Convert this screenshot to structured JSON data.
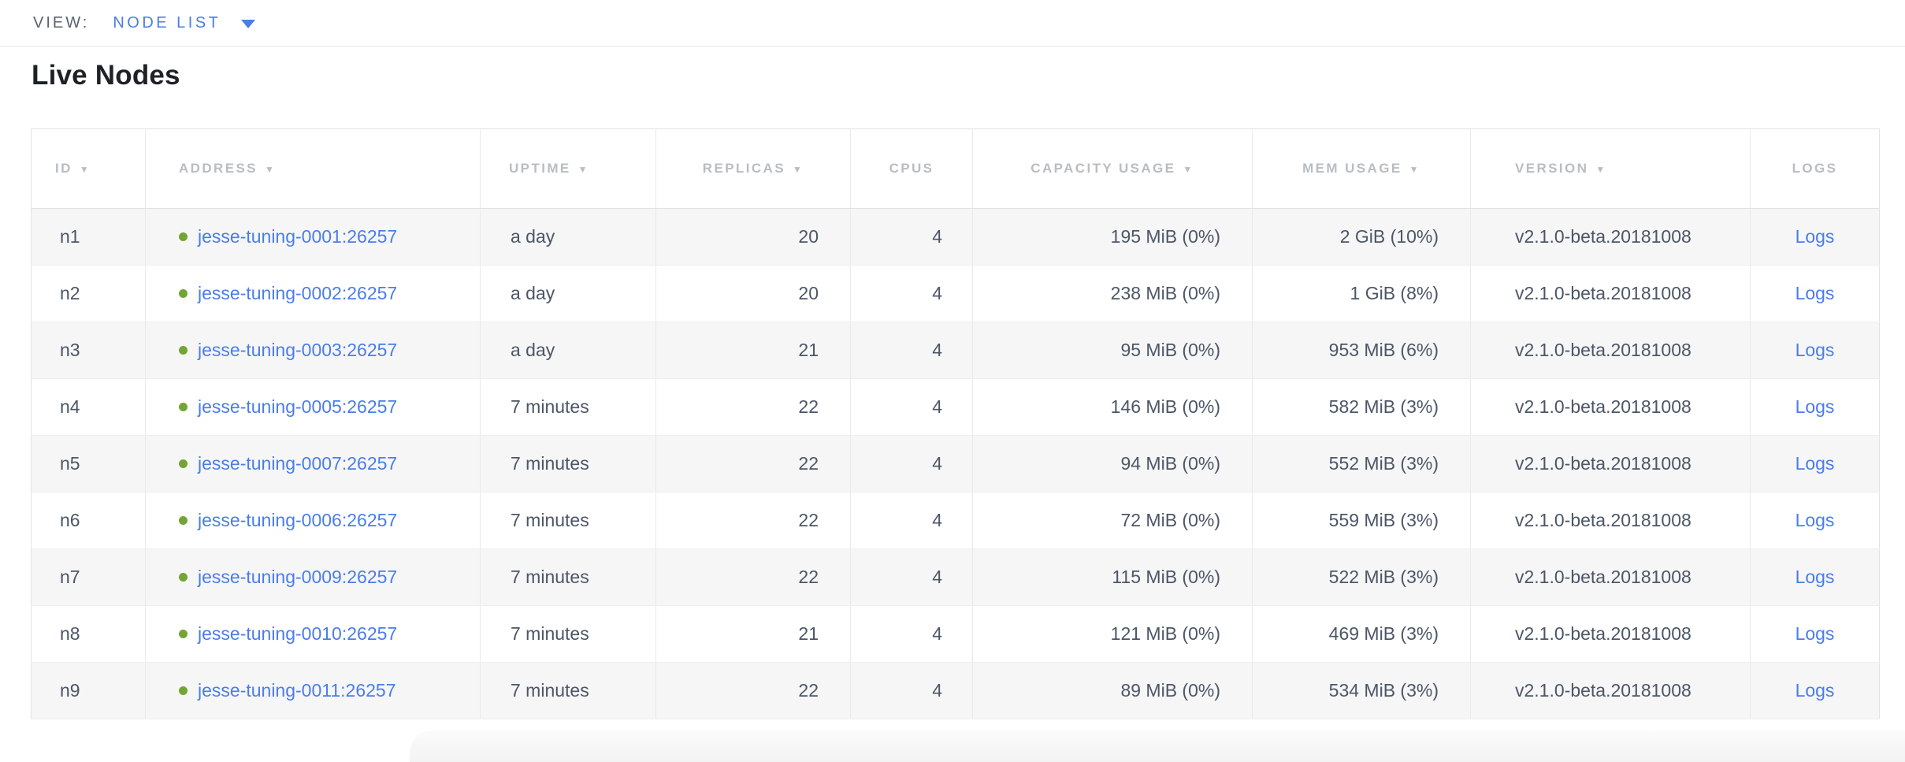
{
  "view_bar": {
    "label": "VIEW:",
    "selected": "NODE LIST"
  },
  "page": {
    "title": "Live Nodes"
  },
  "colors": {
    "accent_blue": "#4a7de9",
    "status_green": "#73a533",
    "header_gray": "#b9bdc3",
    "body_text": "#4c5667",
    "stripe": "#f6f6f7"
  },
  "table": {
    "columns": [
      {
        "key": "id",
        "label": "ID",
        "sortable": true
      },
      {
        "key": "address",
        "label": "ADDRESS",
        "sortable": true
      },
      {
        "key": "uptime",
        "label": "UPTIME",
        "sortable": true
      },
      {
        "key": "replicas",
        "label": "REPLICAS",
        "sortable": true
      },
      {
        "key": "cpus",
        "label": "CPUS",
        "sortable": false
      },
      {
        "key": "capacity",
        "label": "CAPACITY USAGE",
        "sortable": true
      },
      {
        "key": "mem",
        "label": "MEM USAGE",
        "sortable": true
      },
      {
        "key": "version",
        "label": "VERSION",
        "sortable": true
      },
      {
        "key": "logs",
        "label": "LOGS",
        "sortable": false
      }
    ],
    "rows": [
      {
        "id": "n1",
        "address": "jesse-tuning-0001:26257",
        "uptime": "a day",
        "replicas": "20",
        "cpus": "4",
        "capacity": "195 MiB (0%)",
        "mem": "2 GiB (10%)",
        "version": "v2.1.0-beta.20181008",
        "logs": "Logs"
      },
      {
        "id": "n2",
        "address": "jesse-tuning-0002:26257",
        "uptime": "a day",
        "replicas": "20",
        "cpus": "4",
        "capacity": "238 MiB (0%)",
        "mem": "1 GiB (8%)",
        "version": "v2.1.0-beta.20181008",
        "logs": "Logs"
      },
      {
        "id": "n3",
        "address": "jesse-tuning-0003:26257",
        "uptime": "a day",
        "replicas": "21",
        "cpus": "4",
        "capacity": "95 MiB (0%)",
        "mem": "953 MiB (6%)",
        "version": "v2.1.0-beta.20181008",
        "logs": "Logs"
      },
      {
        "id": "n4",
        "address": "jesse-tuning-0005:26257",
        "uptime": "7 minutes",
        "replicas": "22",
        "cpus": "4",
        "capacity": "146 MiB (0%)",
        "mem": "582 MiB (3%)",
        "version": "v2.1.0-beta.20181008",
        "logs": "Logs"
      },
      {
        "id": "n5",
        "address": "jesse-tuning-0007:26257",
        "uptime": "7 minutes",
        "replicas": "22",
        "cpus": "4",
        "capacity": "94 MiB (0%)",
        "mem": "552 MiB (3%)",
        "version": "v2.1.0-beta.20181008",
        "logs": "Logs"
      },
      {
        "id": "n6",
        "address": "jesse-tuning-0006:26257",
        "uptime": "7 minutes",
        "replicas": "22",
        "cpus": "4",
        "capacity": "72 MiB (0%)",
        "mem": "559 MiB (3%)",
        "version": "v2.1.0-beta.20181008",
        "logs": "Logs"
      },
      {
        "id": "n7",
        "address": "jesse-tuning-0009:26257",
        "uptime": "7 minutes",
        "replicas": "22",
        "cpus": "4",
        "capacity": "115 MiB (0%)",
        "mem": "522 MiB (3%)",
        "version": "v2.1.0-beta.20181008",
        "logs": "Logs"
      },
      {
        "id": "n8",
        "address": "jesse-tuning-0010:26257",
        "uptime": "7 minutes",
        "replicas": "21",
        "cpus": "4",
        "capacity": "121 MiB (0%)",
        "mem": "469 MiB (3%)",
        "version": "v2.1.0-beta.20181008",
        "logs": "Logs"
      },
      {
        "id": "n9",
        "address": "jesse-tuning-0011:26257",
        "uptime": "7 minutes",
        "replicas": "22",
        "cpus": "4",
        "capacity": "89 MiB (0%)",
        "mem": "534 MiB (3%)",
        "version": "v2.1.0-beta.20181008",
        "logs": "Logs"
      }
    ]
  }
}
